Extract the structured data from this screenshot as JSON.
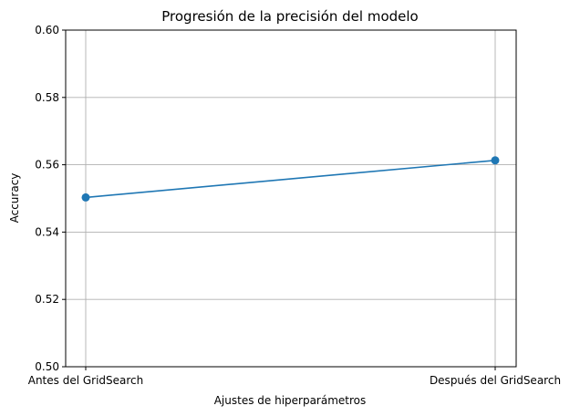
{
  "chart_data": {
    "type": "line",
    "title": "Progresión de la precisión del modelo",
    "xlabel": "Ajustes de hiperparámetros",
    "ylabel": "Accuracy",
    "categories": [
      "Antes del GridSearch",
      "Después del GridSearch"
    ],
    "series": [
      {
        "values": [
          0.5503,
          0.5613
        ],
        "color": "#1f77b4",
        "marker": "circle"
      }
    ],
    "ylim": [
      0.5,
      0.6
    ],
    "yticks": [
      0.5,
      0.52,
      0.54,
      0.56,
      0.58,
      0.6
    ],
    "ytick_labels": [
      "0.50",
      "0.52",
      "0.54",
      "0.56",
      "0.58",
      "0.60"
    ],
    "grid": true,
    "legend": "none"
  }
}
